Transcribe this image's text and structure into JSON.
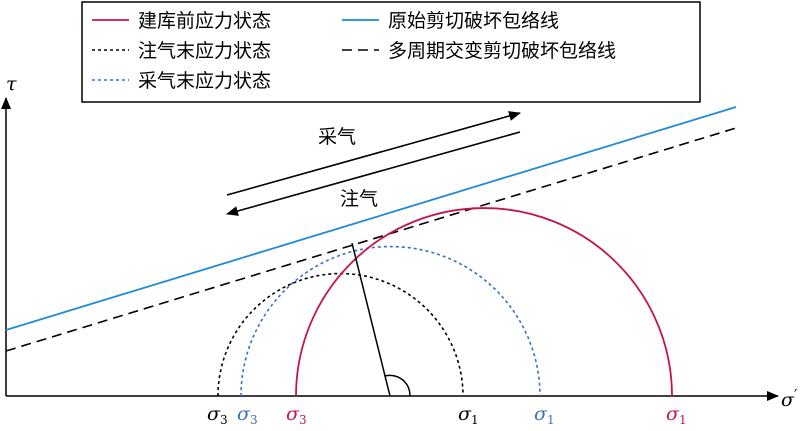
{
  "legend": {
    "items": [
      {
        "label": "建库前应力状态",
        "color": "#c4154a",
        "dash": "solid"
      },
      {
        "label": "原始剪切破坏包络线",
        "color": "#1f8ad6",
        "dash": "solid"
      },
      {
        "label": "注气末应力状态",
        "color": "#000000",
        "dash": "dotted"
      },
      {
        "label": "多周期交变剪切破坏包络线",
        "color": "#000000",
        "dash": "dashed"
      },
      {
        "label": "采气末应力状态",
        "color": "#3a6fc0",
        "dash": "dotted"
      }
    ]
  },
  "axes": {
    "y_label": "τ",
    "x_label": "σ",
    "x_label_prime": "′"
  },
  "arrows": {
    "production_label": "采气",
    "injection_label": "注气"
  },
  "stress_labels": [
    {
      "symbol": "σ",
      "sub": "3",
      "color": "#000000"
    },
    {
      "symbol": "σ",
      "sub": "3",
      "color": "#3a6fc0"
    },
    {
      "symbol": "σ",
      "sub": "3",
      "color": "#c4154a"
    },
    {
      "symbol": "σ",
      "sub": "1",
      "color": "#000000"
    },
    {
      "symbol": "σ",
      "sub": "1",
      "color": "#3a6fc0"
    },
    {
      "symbol": "σ",
      "sub": "1",
      "color": "#c4154a"
    }
  ]
}
